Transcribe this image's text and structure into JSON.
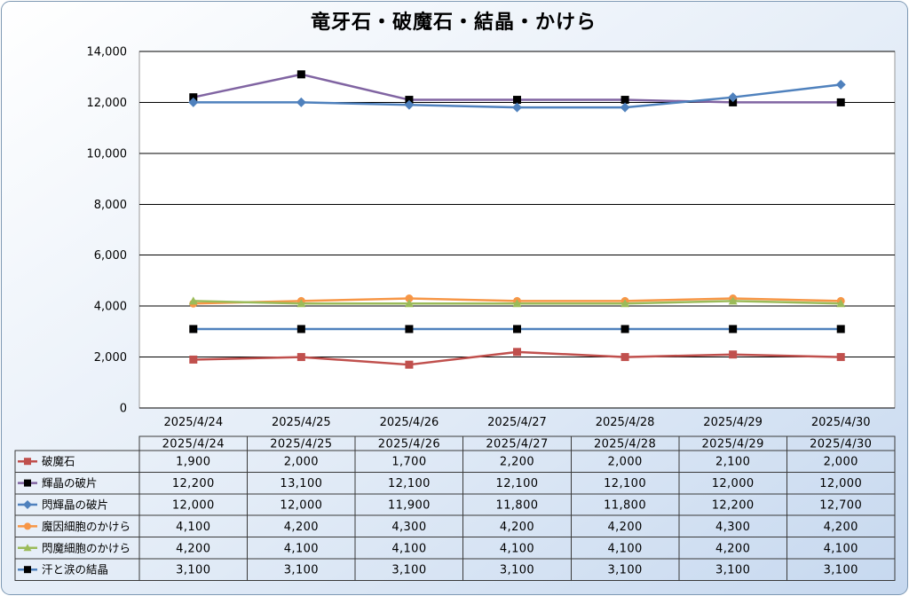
{
  "chart_data": {
    "type": "line",
    "title": "竜牙石・破魔石・結晶・かけら",
    "categories": [
      "2025/4/24",
      "2025/4/25",
      "2025/4/26",
      "2025/4/27",
      "2025/4/28",
      "2025/4/29",
      "2025/4/30"
    ],
    "ylim": [
      0,
      14000
    ],
    "yticks": [
      0,
      2000,
      4000,
      6000,
      8000,
      10000,
      12000,
      14000
    ],
    "ytick_labels": [
      "0",
      "2,000",
      "4,000",
      "6,000",
      "8,000",
      "10,000",
      "12,000",
      "14,000"
    ],
    "grid": true,
    "legend": "bottom",
    "series": [
      {
        "name": "破魔石",
        "values": [
          1900,
          2000,
          1700,
          2200,
          2000,
          2100,
          2000
        ],
        "value_labels": [
          "1,900",
          "2,000",
          "1,700",
          "2,200",
          "2,000",
          "2,100",
          "2,000"
        ],
        "line_color": "#C0504D",
        "marker": "square",
        "marker_color": "#C0504D"
      },
      {
        "name": "輝晶の破片",
        "values": [
          12200,
          13100,
          12100,
          12100,
          12100,
          12000,
          12000
        ],
        "value_labels": [
          "12,200",
          "13,100",
          "12,100",
          "12,100",
          "12,100",
          "12,000",
          "12,000"
        ],
        "line_color": "#8064A2",
        "marker": "square",
        "marker_color": "#000000"
      },
      {
        "name": "閃輝晶の破片",
        "values": [
          12000,
          12000,
          11900,
          11800,
          11800,
          12200,
          12700
        ],
        "value_labels": [
          "12,000",
          "12,000",
          "11,900",
          "11,800",
          "11,800",
          "12,200",
          "12,700"
        ],
        "line_color": "#4F81BD",
        "marker": "diamond",
        "marker_color": "#4F81BD"
      },
      {
        "name": "魔因細胞のかけら",
        "values": [
          4100,
          4200,
          4300,
          4200,
          4200,
          4300,
          4200
        ],
        "value_labels": [
          "4,100",
          "4,200",
          "4,300",
          "4,200",
          "4,200",
          "4,300",
          "4,200"
        ],
        "line_color": "#F79646",
        "marker": "circle",
        "marker_color": "#F79646"
      },
      {
        "name": "閃魔細胞のかけら",
        "values": [
          4200,
          4100,
          4100,
          4100,
          4100,
          4200,
          4100
        ],
        "value_labels": [
          "4,200",
          "4,100",
          "4,100",
          "4,100",
          "4,100",
          "4,200",
          "4,100"
        ],
        "line_color": "#9BBB59",
        "marker": "triangle",
        "marker_color": "#9BBB59"
      },
      {
        "name": "汗と涙の結晶",
        "values": [
          3100,
          3100,
          3100,
          3100,
          3100,
          3100,
          3100
        ],
        "value_labels": [
          "3,100",
          "3,100",
          "3,100",
          "3,100",
          "3,100",
          "3,100",
          "3,100"
        ],
        "line_color": "#4F81BD",
        "marker": "square",
        "marker_color": "#000000"
      }
    ]
  }
}
